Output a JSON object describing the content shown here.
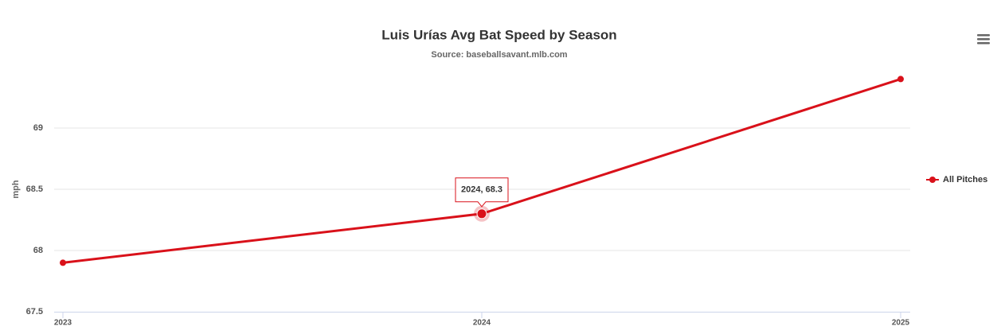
{
  "chart_data": {
    "type": "line",
    "title": "Luis Urías Avg Bat Speed by Season",
    "subtitle": "Source: baseballsavant.mlb.com",
    "y_label": "mph",
    "x": [
      2023,
      2024,
      2025
    ],
    "xlim": [
      2023,
      2025
    ],
    "xticks": [
      2023,
      2024,
      2025
    ],
    "series": [
      {
        "name": "All Pitches",
        "color": "#d9111a",
        "values": [
          67.9,
          68.3,
          69.4
        ]
      }
    ],
    "ylim": [
      67.5,
      69.5
    ],
    "yticks": [
      67.5,
      68,
      68.5,
      69
    ],
    "grid": true,
    "legend": "right",
    "tooltip": "2024, 68.3"
  }
}
